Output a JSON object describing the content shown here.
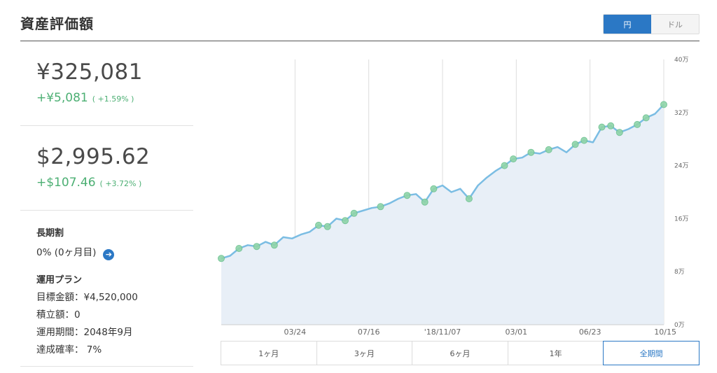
{
  "header": {
    "title": "資産評価額",
    "currency_options": [
      {
        "label": "円",
        "active": true
      },
      {
        "label": "ドル",
        "active": false
      }
    ]
  },
  "summary": {
    "jpy": {
      "value": "¥325,081",
      "change": "+¥5,081",
      "change_pct": "( +1.59% )"
    },
    "usd": {
      "value": "$2,995.62",
      "change": "+$107.46",
      "change_pct": "( +3.72% )"
    }
  },
  "long_term_discount": {
    "heading": "長期割",
    "value": "0% (0ヶ月目)",
    "arrow_icon": "arrow-right-circle-icon"
  },
  "plan": {
    "heading": "運用プラン",
    "target_amount": "目標金額：¥4,520,000",
    "accumulation": "積立額：0",
    "period": "運用期間：2048年9月",
    "achievement": "達成確率： 7%"
  },
  "colors": {
    "accent": "#2b78c5",
    "positive": "#4caf73",
    "line": "#7bbde3",
    "area": "#e8eff7",
    "marker": "#8fd4a8"
  },
  "chart_data": {
    "type": "area",
    "x_tick_labels": [
      "03/24",
      "07/16",
      "'18/11/07",
      "03/01",
      "06/23",
      "10/15"
    ],
    "y_tick_labels": [
      "0万",
      "8万",
      "16万",
      "24万",
      "32万",
      "40万"
    ],
    "ylim": [
      0,
      400000
    ],
    "series": [
      {
        "values": [
          100000,
          104000,
          115000,
          120000,
          118000,
          125000,
          120000,
          132000,
          130000,
          136000,
          140000,
          150000,
          148000,
          160000,
          157000,
          168000,
          172000,
          176000,
          178000,
          183000,
          190000,
          195000,
          197000,
          185000,
          205000,
          210000,
          200000,
          205000,
          190000,
          210000,
          222000,
          232000,
          240000,
          250000,
          252000,
          260000,
          258000,
          264000,
          268000,
          260000,
          272000,
          278000,
          275000,
          298000,
          300000,
          290000,
          295000,
          302000,
          312000,
          318000,
          332000
        ]
      }
    ],
    "markers_at_index": [
      0,
      2,
      4,
      6,
      11,
      12,
      14,
      15,
      18,
      21,
      23,
      24,
      28,
      32,
      33,
      35,
      37,
      40,
      41,
      43,
      44,
      45,
      47,
      48,
      50
    ],
    "grid": true
  },
  "range_buttons": [
    {
      "label": "1ヶ月",
      "active": false
    },
    {
      "label": "3ヶ月",
      "active": false
    },
    {
      "label": "6ヶ月",
      "active": false
    },
    {
      "label": "1年",
      "active": false
    },
    {
      "label": "全期間",
      "active": true
    }
  ]
}
